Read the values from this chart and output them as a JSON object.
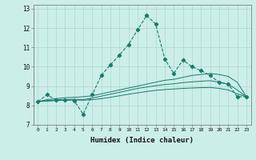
{
  "title": "",
  "xlabel": "Humidex (Indice chaleur)",
  "ylabel": "",
  "bg_color": "#cceee8",
  "grid_color": "#aad8d0",
  "line_color": "#1a7a6e",
  "xlim": [
    -0.5,
    23.5
  ],
  "ylim": [
    7,
    13.2
  ],
  "yticks": [
    7,
    8,
    9,
    10,
    11,
    12,
    13
  ],
  "xticks": [
    0,
    1,
    2,
    3,
    4,
    5,
    6,
    7,
    8,
    9,
    10,
    11,
    12,
    13,
    14,
    15,
    16,
    17,
    18,
    19,
    20,
    21,
    22,
    23
  ],
  "main_x": [
    0,
    1,
    2,
    3,
    4,
    5,
    6,
    7,
    8,
    9,
    10,
    11,
    12,
    13,
    14,
    15,
    16,
    17,
    18,
    19,
    20,
    21,
    22,
    23
  ],
  "main_y": [
    8.2,
    8.55,
    8.3,
    8.3,
    8.25,
    7.55,
    8.55,
    9.55,
    10.1,
    10.6,
    11.15,
    11.9,
    12.65,
    12.2,
    10.4,
    9.65,
    10.35,
    10.0,
    9.8,
    9.55,
    9.2,
    9.1,
    8.45,
    8.45
  ],
  "line2_x": [
    0,
    1,
    2,
    3,
    4,
    5,
    6,
    7,
    8,
    9,
    10,
    11,
    12,
    13,
    14,
    15,
    16,
    17,
    18,
    19,
    20,
    21,
    22,
    23
  ],
  "line2_y": [
    8.2,
    8.3,
    8.35,
    8.4,
    8.42,
    8.45,
    8.5,
    8.6,
    8.7,
    8.8,
    8.9,
    9.0,
    9.1,
    9.2,
    9.3,
    9.35,
    9.45,
    9.55,
    9.6,
    9.65,
    9.6,
    9.5,
    9.2,
    8.45
  ],
  "line3_x": [
    0,
    1,
    2,
    3,
    4,
    5,
    6,
    7,
    8,
    9,
    10,
    11,
    12,
    13,
    14,
    15,
    16,
    17,
    18,
    19,
    20,
    21,
    22,
    23
  ],
  "line3_y": [
    8.2,
    8.25,
    8.28,
    8.3,
    8.32,
    8.3,
    8.38,
    8.48,
    8.58,
    8.68,
    8.78,
    8.88,
    8.95,
    9.02,
    9.08,
    9.12,
    9.18,
    9.22,
    9.25,
    9.28,
    9.2,
    9.1,
    8.8,
    8.45
  ],
  "line4_x": [
    0,
    1,
    2,
    3,
    4,
    5,
    6,
    7,
    8,
    9,
    10,
    11,
    12,
    13,
    14,
    15,
    16,
    17,
    18,
    19,
    20,
    21,
    22,
    23
  ],
  "line4_y": [
    8.2,
    8.22,
    8.25,
    8.27,
    8.28,
    8.27,
    8.3,
    8.35,
    8.42,
    8.5,
    8.58,
    8.65,
    8.72,
    8.78,
    8.82,
    8.85,
    8.88,
    8.9,
    8.92,
    8.93,
    8.88,
    8.8,
    8.6,
    8.45
  ]
}
